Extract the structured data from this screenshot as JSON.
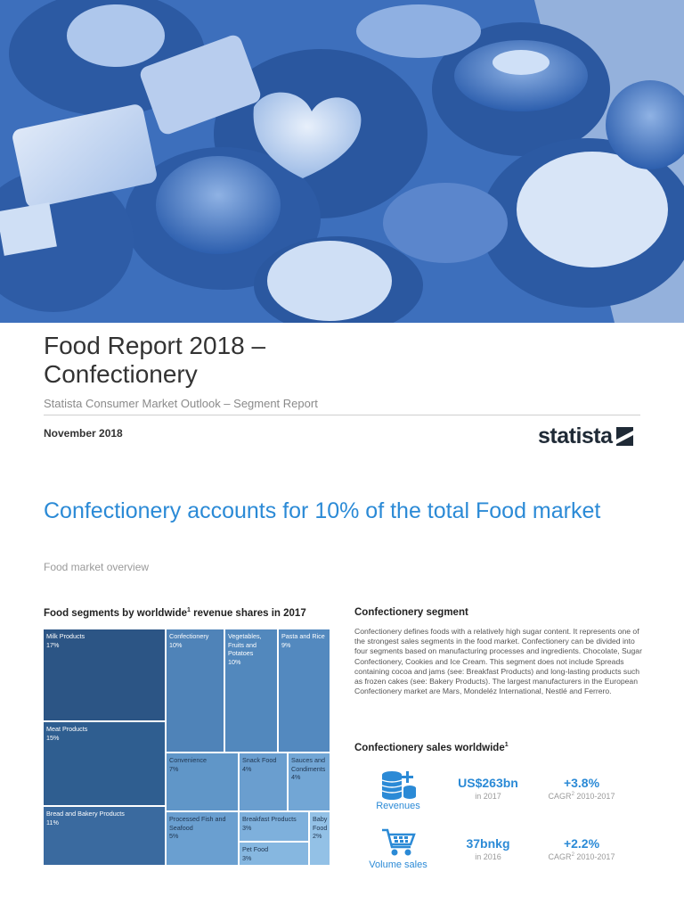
{
  "header": {
    "title_line1": "Food Report 2018 –",
    "title_line2": "Confectionery",
    "subtitle": "Statista Consumer Market Outlook – Segment Report",
    "date": "November 2018",
    "logo_text": "statista"
  },
  "overview": {
    "headline": "Confectionery accounts for 10% of the total Food market",
    "subheading": "Food market overview"
  },
  "treemap": {
    "title_pre": "Food segments by worldwide",
    "title_sup": "1",
    "title_post": " revenue shares in 2017",
    "colors": {
      "base": "#2f5f8f"
    }
  },
  "chart_data": {
    "type": "treemap",
    "title": "Food segments by worldwide¹ revenue shares in 2017",
    "unit": "%",
    "items": [
      {
        "label": "Milk Products",
        "value": 17,
        "value_label": "17%"
      },
      {
        "label": "Meat Products",
        "value": 15,
        "value_label": "15%"
      },
      {
        "label": "Bread and Bakery Products",
        "value": 11,
        "value_label": "11%"
      },
      {
        "label": "Confectionery",
        "value": 10,
        "value_label": "10%"
      },
      {
        "label": "Vegetables, Fruits and Potatoes",
        "value": 10,
        "value_label": "10%"
      },
      {
        "label": "Pasta and Rice",
        "value": 9,
        "value_label": "9%"
      },
      {
        "label": "Convenience",
        "value": 7,
        "value_label": "7%"
      },
      {
        "label": "Snack Food",
        "value": 4,
        "value_label": "4%"
      },
      {
        "label": "Sauces and Condiments",
        "value": 4,
        "value_label": "4%"
      },
      {
        "label": "Processed Fish and Seafood",
        "value": 5,
        "value_label": "5%"
      },
      {
        "label": "Breakfast Products",
        "value": 3,
        "value_label": "3%"
      },
      {
        "label": "Baby Food",
        "value": 2,
        "value_label": "2%"
      },
      {
        "label": "Pet Food",
        "value": 3,
        "value_label": "3%"
      }
    ]
  },
  "segment": {
    "title": "Confectionery segment",
    "body": "Confectionery defines foods with a relatively high sugar content. It represents one of the strongest sales segments in the food market. Confectionery can be divided into four segments based on manufacturing processes and ingredients. Chocolate, Sugar Confectionery, Cookies and Ice Cream. This segment does not include Spreads containing cocoa and jams (see: Breakfast Products) and long-lasting products such as frozen cakes (see: Bakery Products). The largest manufacturers in the European Confectionery market are Mars, Mondeléz International, Nestlé and Ferrero."
  },
  "sales": {
    "title_pre": "Confectionery sales worldwide",
    "title_sup": "1",
    "revenues": {
      "label": "Revenues",
      "icon": "coins-icon",
      "value": "US$263bn",
      "value_caption": "in 2017",
      "growth": "+3.8%",
      "growth_caption_pre": "CAGR",
      "growth_caption_sup": "2",
      "growth_caption_post": " 2010-2017"
    },
    "volume": {
      "label": "Volume sales",
      "icon": "shopping-cart-icon",
      "value": "37bnkg",
      "value_caption": "in 2016",
      "growth": "+2.2%",
      "growth_caption_pre": "CAGR",
      "growth_caption_sup": "2",
      "growth_caption_post": " 2010-2017"
    }
  },
  "colors": {
    "accent": "#2b8ad6",
    "hero": "#3c70bd"
  }
}
